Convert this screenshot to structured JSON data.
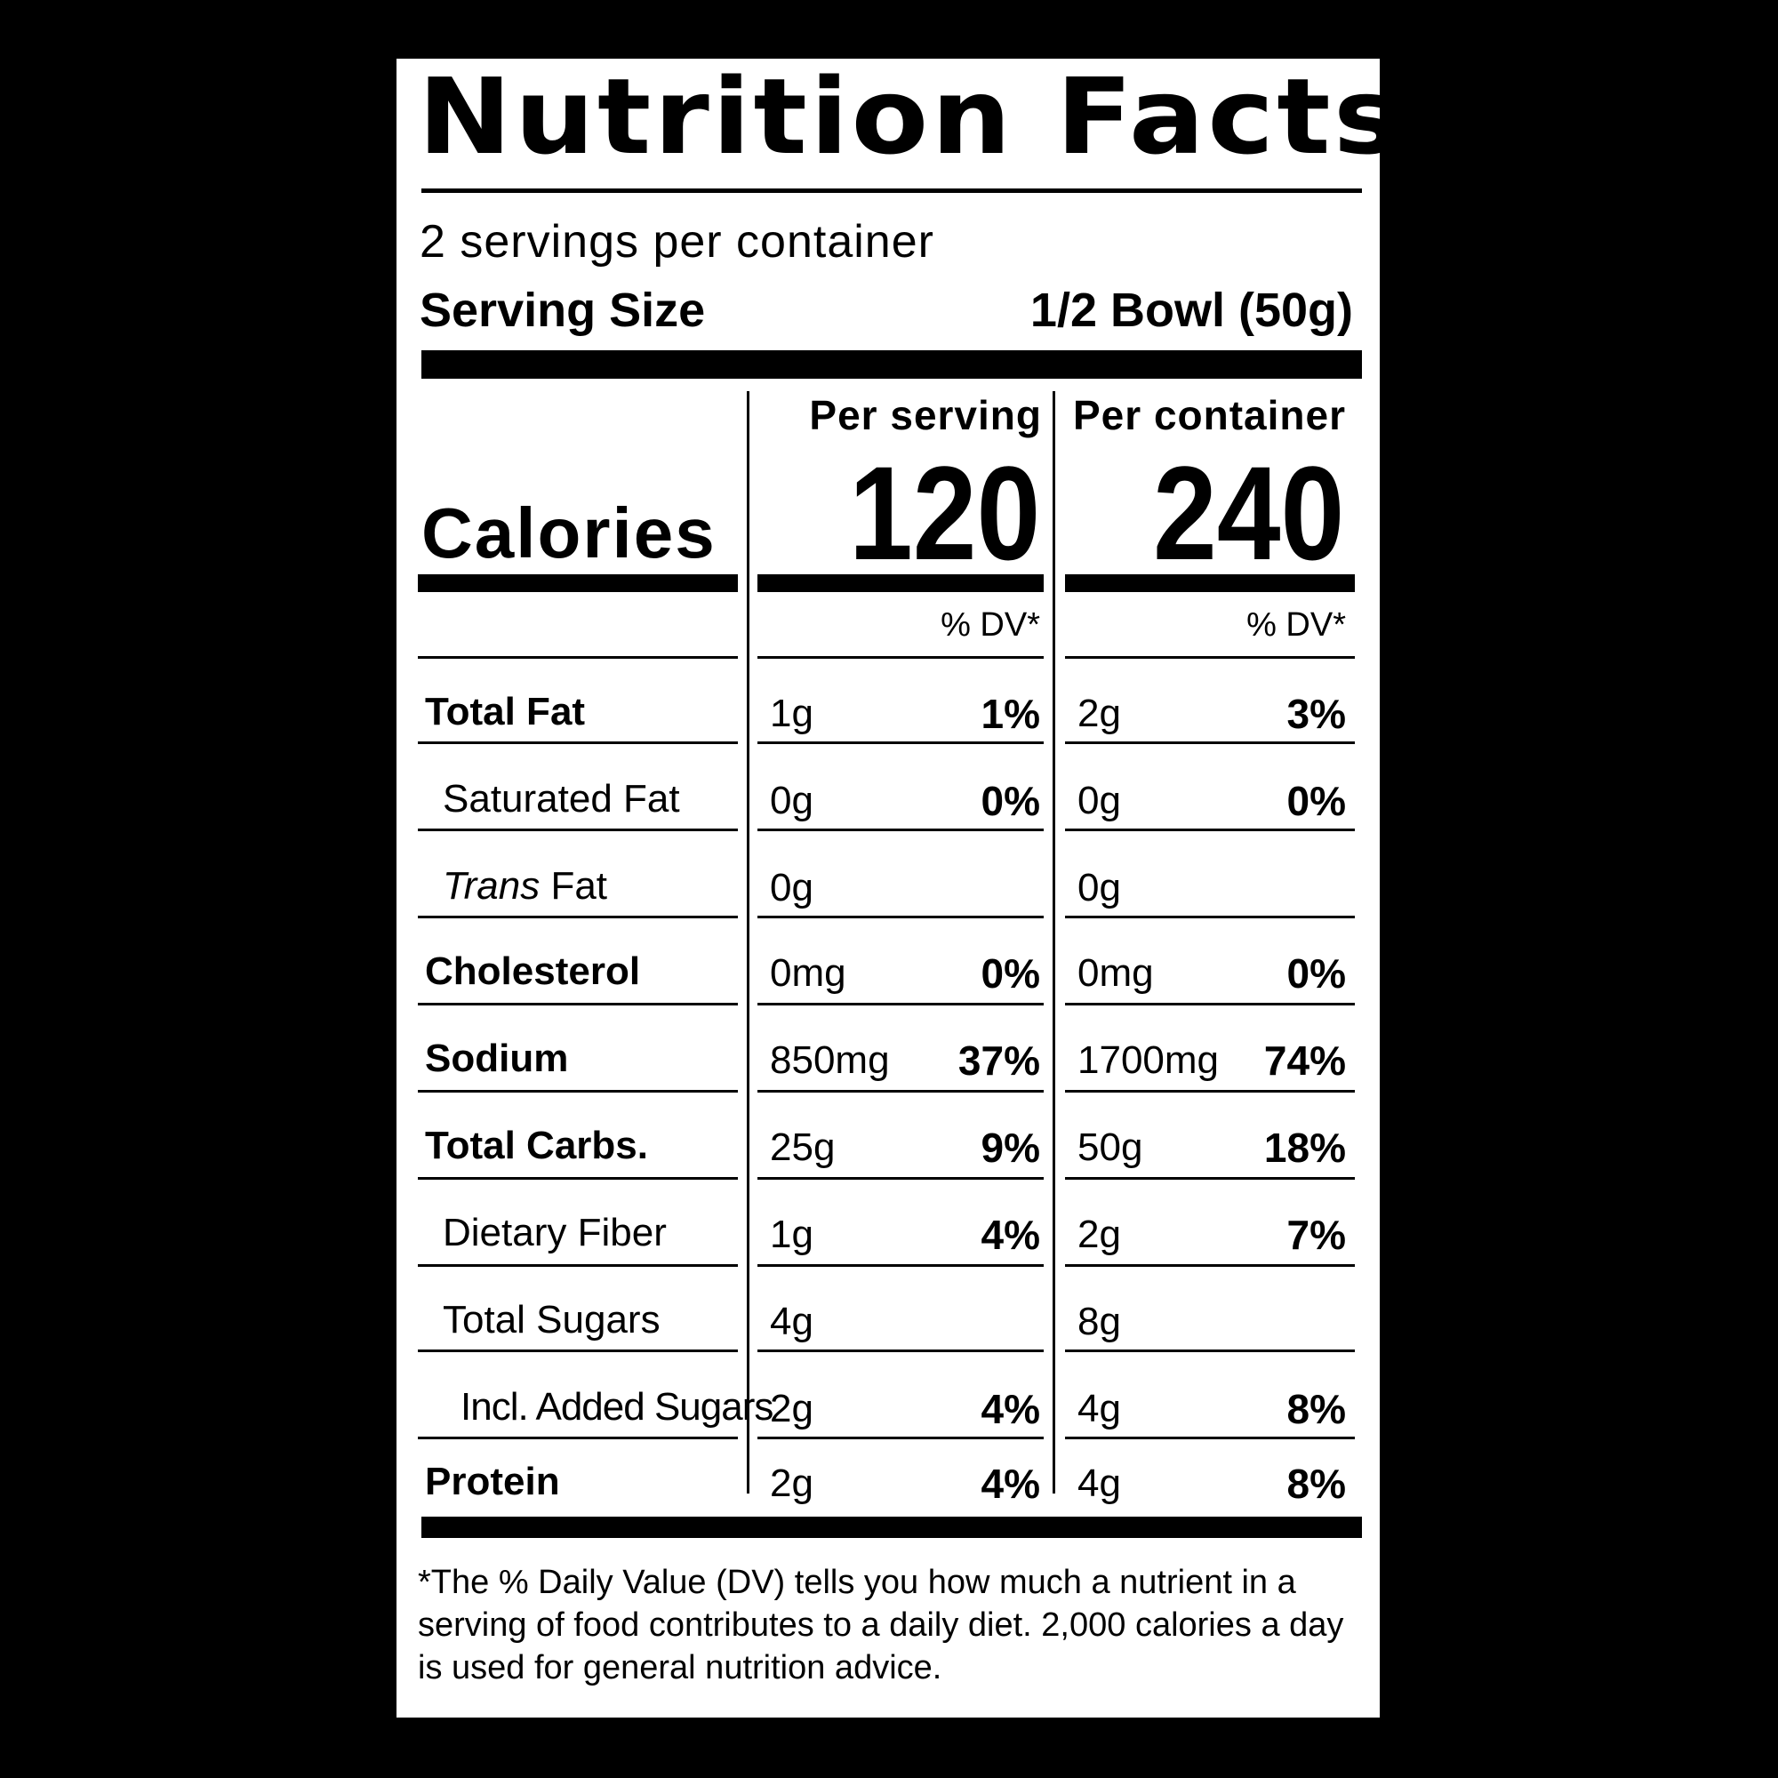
{
  "title": "Nutrition Facts",
  "servings_per_container": "2 servings per container",
  "serving_size_label": "Serving Size",
  "serving_size_value": "1/2 Bowl (50g)",
  "per_serving_label": "Per serving",
  "per_container_label": "Per container",
  "calories_label": "Calories",
  "calories_per_serving": "120",
  "calories_per_container": "240",
  "dv_header": "% DV*",
  "nutrients": [
    {
      "label": "Total Fat",
      "serving_amount": "1g",
      "serving_dv": "1%",
      "container_amount": "2g",
      "container_dv": "3%"
    },
    {
      "label": "Saturated Fat",
      "serving_amount": "0g",
      "serving_dv": "0%",
      "container_amount": "0g",
      "container_dv": "0%"
    },
    {
      "label_italic": "Trans",
      "label_rest": " Fat",
      "serving_amount": "0g",
      "serving_dv": "",
      "container_amount": "0g",
      "container_dv": ""
    },
    {
      "label": "Cholesterol",
      "serving_amount": "0mg",
      "serving_dv": "0%",
      "container_amount": "0mg",
      "container_dv": "0%"
    },
    {
      "label": "Sodium",
      "serving_amount": "850mg",
      "serving_dv": "37%",
      "container_amount": "1700mg",
      "container_dv": "74%"
    },
    {
      "label": "Total Carbs.",
      "serving_amount": "25g",
      "serving_dv": "9%",
      "container_amount": "50g",
      "container_dv": "18%"
    },
    {
      "label": "Dietary Fiber",
      "serving_amount": "1g",
      "serving_dv": "4%",
      "container_amount": "2g",
      "container_dv": "7%"
    },
    {
      "label": "Total Sugars",
      "serving_amount": "4g",
      "serving_dv": "",
      "container_amount": "8g",
      "container_dv": ""
    },
    {
      "label": "Incl. Added Sugars",
      "serving_amount": "2g",
      "serving_dv": "4%",
      "container_amount": "4g",
      "container_dv": "8%"
    },
    {
      "label": "Protein",
      "serving_amount": "2g",
      "serving_dv": "4%",
      "container_amount": "4g",
      "container_dv": "8%"
    }
  ],
  "footnote": "*The % Daily Value (DV) tells you how much a nutrient in a serving of food contributes to a daily diet. 2,000 calories a day is used for general nutrition advice."
}
